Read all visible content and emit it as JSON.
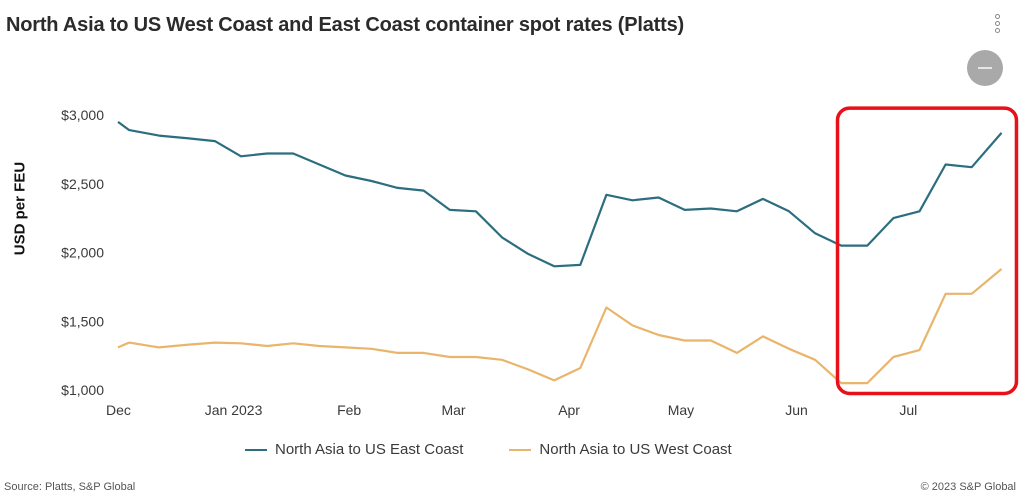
{
  "title": "North Asia to US West Coast and East Coast container spot rates (Platts)",
  "footer": {
    "source": "Source: Platts, S&P Global",
    "copyright": "© 2023 S&P Global"
  },
  "highlight_color": "#e8111a",
  "chart_data": {
    "type": "line",
    "title": "North Asia to US West Coast and East Coast container spot rates (Platts)",
    "xlabel": "",
    "ylabel": "USD per FEU",
    "ylim": [
      1000,
      3000
    ],
    "yticks": [
      1000,
      1500,
      2000,
      2500,
      3000
    ],
    "ytick_labels": [
      "$1,000",
      "$1,500",
      "$2,000",
      "$2,500",
      "$3,000"
    ],
    "x_start": "2022-12-01",
    "x_end": "2023-07-28",
    "xticks": [
      "2022-12-01",
      "2023-01-01",
      "2023-02-01",
      "2023-03-01",
      "2023-04-01",
      "2023-05-01",
      "2023-06-01",
      "2023-07-01"
    ],
    "xtick_labels": [
      "Dec",
      "Jan 2023",
      "Feb",
      "Mar",
      "Apr",
      "May",
      "Jun",
      "Jul"
    ],
    "grid": false,
    "legend_position": "bottom",
    "highlight": {
      "x_from": "2023-06-12",
      "x_to": "2023-07-30",
      "y_from": 975,
      "y_to": 3050
    },
    "series": [
      {
        "name": "North Asia to US East Coast",
        "color": "#2c6e7f",
        "points": [
          [
            "2022-12-01",
            2950
          ],
          [
            "2022-12-04",
            2890
          ],
          [
            "2022-12-12",
            2850
          ],
          [
            "2022-12-20",
            2830
          ],
          [
            "2022-12-27",
            2810
          ],
          [
            "2023-01-03",
            2700
          ],
          [
            "2023-01-10",
            2720
          ],
          [
            "2023-01-17",
            2720
          ],
          [
            "2023-01-24",
            2640
          ],
          [
            "2023-01-31",
            2560
          ],
          [
            "2023-02-07",
            2520
          ],
          [
            "2023-02-14",
            2470
          ],
          [
            "2023-02-21",
            2450
          ],
          [
            "2023-02-28",
            2310
          ],
          [
            "2023-03-07",
            2300
          ],
          [
            "2023-03-14",
            2110
          ],
          [
            "2023-03-21",
            1990
          ],
          [
            "2023-03-28",
            1900
          ],
          [
            "2023-04-04",
            1910
          ],
          [
            "2023-04-11",
            2420
          ],
          [
            "2023-04-18",
            2380
          ],
          [
            "2023-04-25",
            2400
          ],
          [
            "2023-05-02",
            2310
          ],
          [
            "2023-05-09",
            2320
          ],
          [
            "2023-05-16",
            2300
          ],
          [
            "2023-05-23",
            2390
          ],
          [
            "2023-05-30",
            2300
          ],
          [
            "2023-06-06",
            2140
          ],
          [
            "2023-06-13",
            2050
          ],
          [
            "2023-06-20",
            2050
          ],
          [
            "2023-06-27",
            2250
          ],
          [
            "2023-07-04",
            2300
          ],
          [
            "2023-07-11",
            2640
          ],
          [
            "2023-07-18",
            2620
          ],
          [
            "2023-07-26",
            2870
          ]
        ]
      },
      {
        "name": "North Asia to US West Coast",
        "color": "#e8b56b",
        "points": [
          [
            "2022-12-01",
            1310
          ],
          [
            "2022-12-04",
            1345
          ],
          [
            "2022-12-12",
            1310
          ],
          [
            "2022-12-20",
            1330
          ],
          [
            "2022-12-27",
            1345
          ],
          [
            "2023-01-03",
            1340
          ],
          [
            "2023-01-10",
            1320
          ],
          [
            "2023-01-17",
            1340
          ],
          [
            "2023-01-24",
            1320
          ],
          [
            "2023-01-31",
            1310
          ],
          [
            "2023-02-07",
            1300
          ],
          [
            "2023-02-14",
            1270
          ],
          [
            "2023-02-21",
            1270
          ],
          [
            "2023-02-28",
            1240
          ],
          [
            "2023-03-07",
            1240
          ],
          [
            "2023-03-14",
            1220
          ],
          [
            "2023-03-21",
            1150
          ],
          [
            "2023-03-28",
            1070
          ],
          [
            "2023-04-04",
            1160
          ],
          [
            "2023-04-11",
            1600
          ],
          [
            "2023-04-18",
            1470
          ],
          [
            "2023-04-25",
            1400
          ],
          [
            "2023-05-02",
            1360
          ],
          [
            "2023-05-09",
            1360
          ],
          [
            "2023-05-16",
            1270
          ],
          [
            "2023-05-23",
            1390
          ],
          [
            "2023-05-30",
            1300
          ],
          [
            "2023-06-06",
            1220
          ],
          [
            "2023-06-13",
            1050
          ],
          [
            "2023-06-20",
            1050
          ],
          [
            "2023-06-27",
            1240
          ],
          [
            "2023-07-04",
            1290
          ],
          [
            "2023-07-11",
            1700
          ],
          [
            "2023-07-18",
            1700
          ],
          [
            "2023-07-26",
            1880
          ]
        ]
      }
    ]
  }
}
